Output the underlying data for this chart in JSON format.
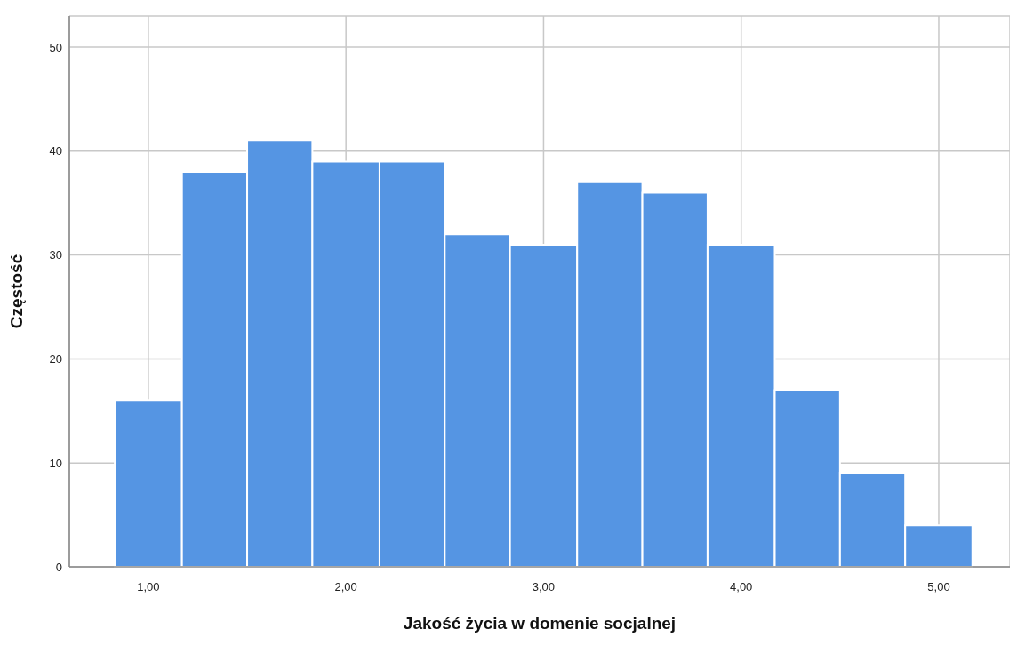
{
  "chart_data": {
    "type": "histogram",
    "xlabel": "Jakość życia w domenie socjalnej",
    "ylabel": "Częstość",
    "bins": [
      0.83,
      1.17,
      1.5,
      1.83,
      2.17,
      2.5,
      2.83,
      3.17,
      3.5,
      3.83,
      4.17,
      4.5,
      4.83,
      5.17
    ],
    "values": [
      16,
      38,
      41,
      39,
      39,
      32,
      31,
      37,
      36,
      31,
      17,
      9,
      4
    ],
    "color": "#5595e3",
    "xlim": [
      0.6,
      5.36
    ],
    "xticks": [
      {
        "value": 1,
        "label": "1,00"
      },
      {
        "value": 2,
        "label": "2,00"
      },
      {
        "value": 3,
        "label": "3,00"
      },
      {
        "value": 4,
        "label": "4,00"
      },
      {
        "value": 5,
        "label": "5,00"
      }
    ],
    "ylim": [
      0,
      53
    ],
    "yticks": [
      0,
      10,
      20,
      30,
      40,
      50
    ],
    "grid": true
  }
}
